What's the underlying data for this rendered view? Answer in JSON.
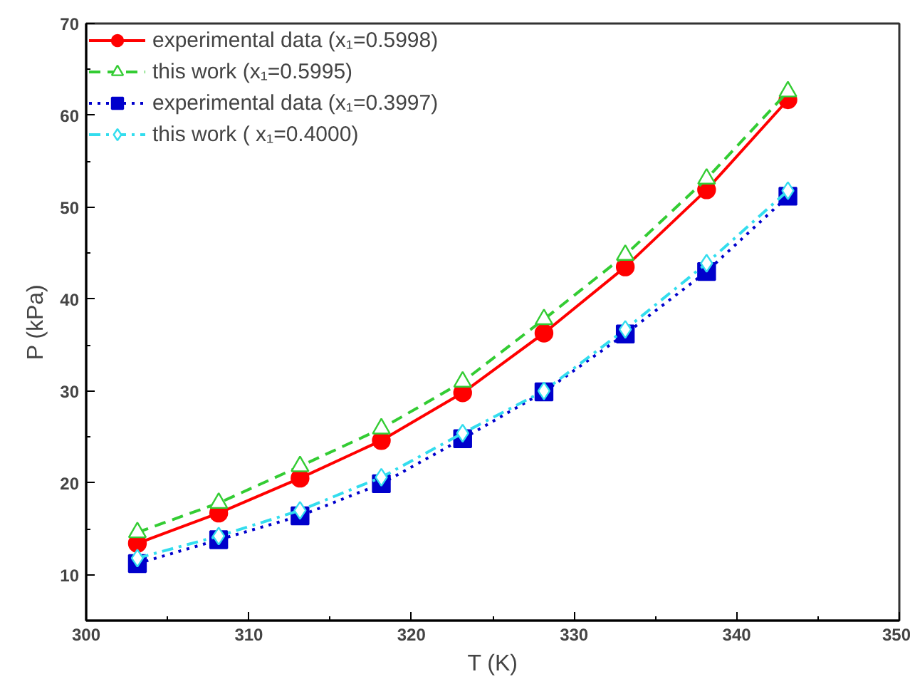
{
  "chart_data": {
    "type": "line",
    "xlabel": "T (K)",
    "ylabel": "P (kPa)",
    "x": [
      303.15,
      308.15,
      313.15,
      318.15,
      323.15,
      328.15,
      333.15,
      338.15,
      343.15
    ],
    "series": [
      {
        "name": "experimental data (x₁=0.5998)",
        "color": "#ff0000",
        "marker": "circle",
        "line_style": "solid",
        "values": [
          13.4,
          16.7,
          20.5,
          24.6,
          29.8,
          36.3,
          43.5,
          51.9,
          61.7
        ]
      },
      {
        "name": "this work (x₁=0.5995)",
        "color": "#33cc33",
        "marker": "triangle",
        "line_style": "dashed",
        "values": [
          14.6,
          17.8,
          21.8,
          25.9,
          31.0,
          37.8,
          44.8,
          53.1,
          62.6
        ]
      },
      {
        "name": "experimental data (x₁=0.3997)",
        "color": "#0000cc",
        "marker": "square",
        "line_style": "dotted",
        "values": [
          11.2,
          13.8,
          16.4,
          19.9,
          24.8,
          29.9,
          36.2,
          43.0,
          51.2
        ]
      },
      {
        "name": "this work ( x₁=0.4000)",
        "color": "#33ddee",
        "marker": "diamond",
        "line_style": "dashdot",
        "values": [
          11.8,
          14.2,
          17.0,
          20.6,
          25.4,
          30.0,
          36.7,
          43.9,
          51.8
        ]
      }
    ],
    "xlim": [
      300,
      350
    ],
    "ylim": [
      5,
      70
    ],
    "xticks": [
      300,
      310,
      320,
      330,
      340,
      350
    ],
    "yticks": [
      10,
      20,
      30,
      40,
      50,
      60,
      70
    ],
    "grid": false,
    "legend": "top left"
  }
}
